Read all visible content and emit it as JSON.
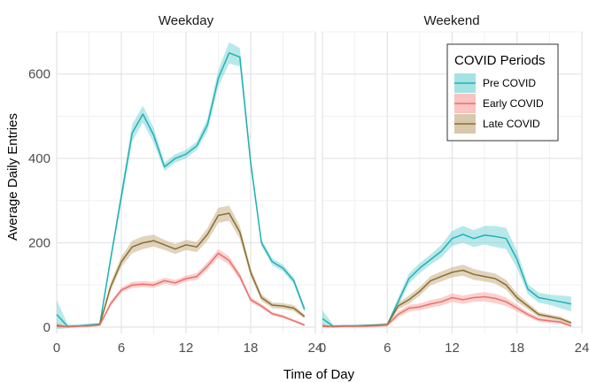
{
  "chart_data": {
    "type": "line",
    "xlabel": "Time of Day",
    "ylabel": "Average Daily Entries",
    "xlim": [
      0,
      24
    ],
    "ylim": [
      -15,
      700
    ],
    "x_ticks": [
      0,
      6,
      12,
      18,
      24
    ],
    "y_ticks": [
      0,
      200,
      400,
      600
    ],
    "grid": true,
    "legend": {
      "title": "COVID Periods",
      "placement": "top-right",
      "entries": [
        "Pre COVID",
        "Early COVID",
        "Late COVID"
      ]
    },
    "colors": {
      "Pre COVID": "#1fb1b5",
      "Early COVID": "#e8716b",
      "Late COVID": "#8a6e2e"
    },
    "band_colors": {
      "Pre COVID": "#7fd5d8",
      "Early COVID": "#f7aaa6",
      "Late COVID": "#c9b089"
    },
    "x": [
      0,
      1,
      2,
      3,
      4,
      5,
      6,
      7,
      8,
      9,
      10,
      11,
      12,
      13,
      14,
      15,
      16,
      17,
      18,
      19,
      20,
      21,
      22,
      23
    ],
    "panels": [
      {
        "title": "Weekday",
        "series": [
          {
            "name": "Pre COVID",
            "values": [
              30,
              2,
              3,
              5,
              7,
              160,
              310,
              460,
              505,
              455,
              380,
              400,
              410,
              430,
              480,
              590,
              650,
              640,
              390,
              200,
              155,
              140,
              110,
              42
            ],
            "band": [
              35,
              5,
              3,
              4,
              4,
              10,
              15,
              20,
              20,
              18,
              10,
              10,
              10,
              10,
              15,
              20,
              25,
              22,
              15,
              8,
              8,
              8,
              8,
              8
            ]
          },
          {
            "name": "Early COVID",
            "values": [
              2,
              1,
              2,
              3,
              5,
              55,
              88,
              100,
              102,
              100,
              110,
              105,
              115,
              120,
              145,
              175,
              158,
              120,
              65,
              50,
              32,
              25,
              15,
              5
            ],
            "band": [
              3,
              2,
              2,
              2,
              2,
              6,
              6,
              7,
              7,
              7,
              7,
              7,
              7,
              8,
              9,
              10,
              10,
              8,
              6,
              5,
              4,
              4,
              3,
              3
            ]
          },
          {
            "name": "Late COVID",
            "values": [
              4,
              1,
              2,
              3,
              6,
              95,
              155,
              190,
              200,
              205,
              195,
              185,
              195,
              190,
              220,
              265,
              270,
              225,
              130,
              70,
              52,
              50,
              45,
              25
            ],
            "band": [
              5,
              2,
              2,
              2,
              3,
              10,
              12,
              15,
              15,
              14,
              12,
              12,
              12,
              12,
              15,
              18,
              18,
              15,
              10,
              8,
              7,
              7,
              7,
              5
            ]
          }
        ]
      },
      {
        "title": "Weekend",
        "series": [
          {
            "name": "Pre COVID",
            "values": [
              20,
              2,
              3,
              3,
              4,
              5,
              6,
              60,
              115,
              140,
              160,
              180,
              210,
              220,
              210,
              218,
              215,
              210,
              160,
              90,
              70,
              65,
              60,
              55
            ],
            "band": [
              20,
              4,
              3,
              3,
              3,
              3,
              4,
              10,
              12,
              12,
              12,
              15,
              18,
              20,
              20,
              22,
              25,
              25,
              20,
              12,
              12,
              12,
              15,
              18
            ]
          },
          {
            "name": "Early COVID",
            "values": [
              2,
              1,
              2,
              2,
              2,
              3,
              5,
              30,
              45,
              48,
              55,
              60,
              70,
              65,
              70,
              72,
              68,
              60,
              45,
              30,
              18,
              15,
              12,
              3
            ],
            "band": [
              3,
              2,
              2,
              2,
              2,
              2,
              3,
              7,
              8,
              8,
              9,
              9,
              10,
              10,
              10,
              11,
              11,
              10,
              8,
              6,
              5,
              5,
              4,
              3
            ]
          },
          {
            "name": "Late COVID",
            "values": [
              3,
              1,
              2,
              2,
              3,
              4,
              6,
              50,
              65,
              85,
              110,
              120,
              130,
              135,
              125,
              120,
              115,
              100,
              70,
              50,
              30,
              25,
              20,
              10
            ],
            "band": [
              4,
              2,
              2,
              2,
              2,
              3,
              4,
              8,
              10,
              10,
              11,
              12,
              12,
              13,
              13,
              12,
              12,
              12,
              10,
              8,
              6,
              5,
              5,
              4
            ]
          }
        ]
      }
    ]
  }
}
